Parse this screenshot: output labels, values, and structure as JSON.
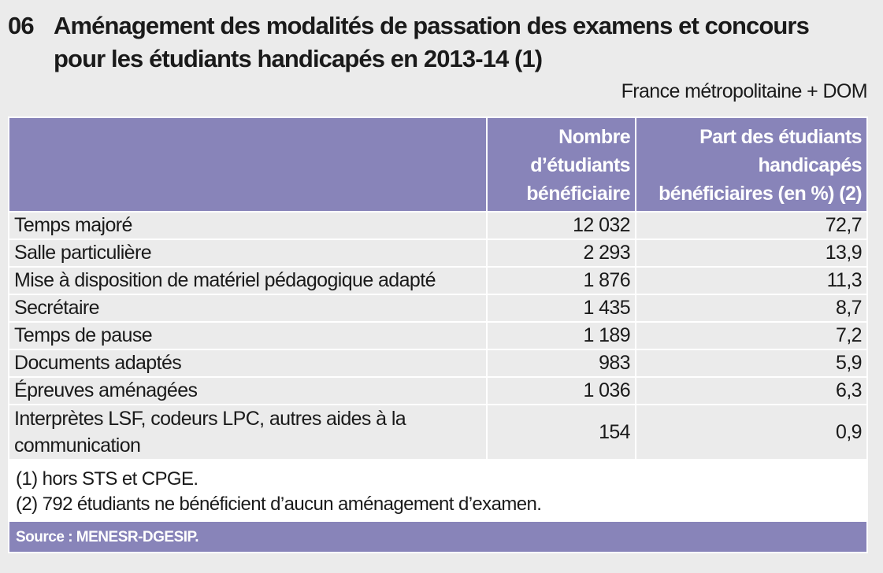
{
  "title": {
    "number": "06",
    "line1": "Aménagement des modalités de passation des examens et concours",
    "line2": "pour les étudiants handicapés en 2013-14 (1)"
  },
  "scope": "France métropolitaine + DOM",
  "table": {
    "headers": [
      "",
      "Nombre d’étudiants bénéficiaire",
      "Part des étudiants handicapés bénéficiaires (en %) (2)"
    ],
    "header_lines": {
      "col2": [
        "Nombre",
        "d’étudiants",
        "bénéficiaire"
      ],
      "col3": [
        "Part des étudiants",
        "handicapés",
        "bénéficiaires (en %) (2)"
      ]
    },
    "rows": [
      {
        "label": "Temps majoré",
        "count": "12 032",
        "pct": "72,7"
      },
      {
        "label": "Salle particulière",
        "count": "2 293",
        "pct": "13,9"
      },
      {
        "label": "Mise à disposition de matériel pédagogique adapté",
        "count": "1 876",
        "pct": "11,3"
      },
      {
        "label": "Secrétaire",
        "count": "1 435",
        "pct": "8,7"
      },
      {
        "label": "Temps de pause",
        "count": "1 189",
        "pct": "7,2"
      },
      {
        "label": "Documents adaptés",
        "count": "983",
        "pct": "5,9"
      },
      {
        "label": "Épreuves aménagées",
        "count": "1 036",
        "pct": "6,3"
      },
      {
        "label": "Interprètes LSF, codeurs LPC, autres aides à la communication",
        "label_lines": [
          "Interprètes LSF, codeurs LPC, autres aides à la",
          "communication"
        ],
        "count": "154",
        "pct": "0,9"
      }
    ]
  },
  "notes": [
    "(1) hors STS et CPGE.",
    "(2) 792 étudiants ne bénéficient d’aucun aménagement d’examen."
  ],
  "source": "Source : MENESR-DGESIP.",
  "colors": {
    "header": "#8884b9",
    "background": "#ebebeb"
  }
}
